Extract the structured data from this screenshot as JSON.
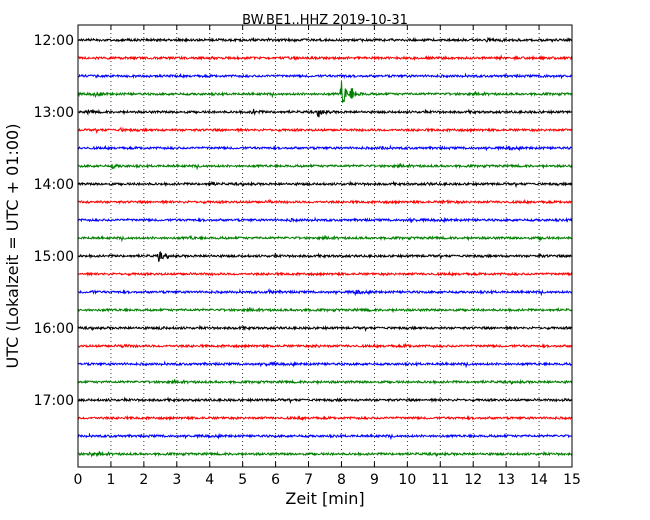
{
  "chart_data": {
    "type": "line",
    "title": "BW.BE1..HHZ 2019-10-31",
    "xlabel": "Zeit  [min]",
    "ylabel": "UTC (Lokalzeit = UTC + 01:00)",
    "xlim": [
      0,
      15
    ],
    "x_ticks": [
      "0",
      "1",
      "2",
      "3",
      "4",
      "5",
      "6",
      "7",
      "8",
      "9",
      "10",
      "11",
      "12",
      "13",
      "14",
      "15"
    ],
    "y_ticks": [
      "12:00",
      "13:00",
      "14:00",
      "15:00",
      "16:00",
      "17:00"
    ],
    "grid": "dotted-vertical",
    "trace_interval_minutes": 15,
    "trace_start_times": [
      "12:00",
      "12:15",
      "12:30",
      "12:45",
      "13:00",
      "13:15",
      "13:30",
      "13:45",
      "14:00",
      "14:15",
      "14:30",
      "14:45",
      "15:00",
      "15:15",
      "15:30",
      "15:45",
      "16:00",
      "16:15",
      "16:30",
      "16:45",
      "17:00",
      "17:15",
      "17:30",
      "17:45"
    ],
    "series_colors": [
      "#000000",
      "#ff0000",
      "#0000ff",
      "#008000"
    ],
    "events": [
      {
        "trace": 0,
        "minute": 12.4,
        "amp": 0.25
      },
      {
        "trace": 0,
        "minute": 5.3,
        "amp": 0.2
      },
      {
        "trace": 2,
        "minute": 8.0,
        "amp": 0.3
      },
      {
        "trace": 2,
        "minute": 14.1,
        "amp": 0.25
      },
      {
        "trace": 3,
        "minute": 0.5,
        "amp": 0.6
      },
      {
        "trace": 3,
        "minute": 8.0,
        "amp": 5.0
      },
      {
        "trace": 3,
        "minute": 8.3,
        "amp": 1.6
      },
      {
        "trace": 4,
        "minute": 5.3,
        "amp": 0.9
      },
      {
        "trace": 4,
        "minute": 7.3,
        "amp": 1.5
      },
      {
        "trace": 4,
        "minute": 0.3,
        "amp": 0.4
      },
      {
        "trace": 5,
        "minute": 1.3,
        "amp": 0.35
      },
      {
        "trace": 6,
        "minute": 9.2,
        "amp": 0.3
      },
      {
        "trace": 6,
        "minute": 13.1,
        "amp": 0.3
      },
      {
        "trace": 7,
        "minute": 1.05,
        "amp": 0.5
      },
      {
        "trace": 8,
        "minute": 4.0,
        "amp": 0.6
      },
      {
        "trace": 8,
        "minute": 10.6,
        "amp": 0.25
      },
      {
        "trace": 9,
        "minute": 11.1,
        "amp": 0.45
      },
      {
        "trace": 9,
        "minute": 5.8,
        "amp": 0.3
      },
      {
        "trace": 10,
        "minute": 10.1,
        "amp": 0.45
      },
      {
        "trace": 10,
        "minute": 6.4,
        "amp": 0.3
      },
      {
        "trace": 11,
        "minute": 3.4,
        "amp": 0.3
      },
      {
        "trace": 11,
        "minute": 14.0,
        "amp": 0.25
      },
      {
        "trace": 12,
        "minute": 2.45,
        "amp": 1.4
      },
      {
        "trace": 12,
        "minute": 14.0,
        "amp": 0.3
      },
      {
        "trace": 14,
        "minute": 5.8,
        "amp": 0.5
      },
      {
        "trace": 14,
        "minute": 8.4,
        "amp": 0.65
      },
      {
        "trace": 14,
        "minute": 0.4,
        "amp": 0.25
      },
      {
        "trace": 15,
        "minute": 6.8,
        "amp": 0.3
      },
      {
        "trace": 15,
        "minute": 8.7,
        "amp": 0.25
      },
      {
        "trace": 16,
        "minute": 2.5,
        "amp": 0.25
      },
      {
        "trace": 16,
        "minute": 4.9,
        "amp": 0.2
      },
      {
        "trace": 17,
        "minute": 1.35,
        "amp": 0.5
      },
      {
        "trace": 17,
        "minute": 7.2,
        "amp": 0.3
      },
      {
        "trace": 17,
        "minute": 9.9,
        "amp": 0.3
      },
      {
        "trace": 18,
        "minute": 5.7,
        "amp": 0.55
      },
      {
        "trace": 20,
        "minute": 14.7,
        "amp": 0.25
      },
      {
        "trace": 21,
        "minute": 6.7,
        "amp": 0.25
      },
      {
        "trace": 23,
        "minute": 0.35,
        "amp": 0.55
      }
    ]
  }
}
